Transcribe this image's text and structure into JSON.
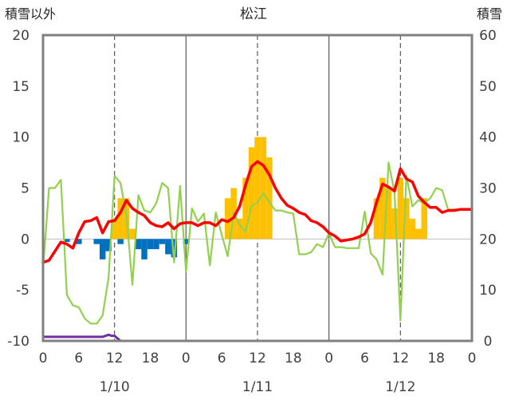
{
  "chart_data": {
    "type": "line",
    "title": "松江",
    "y_left_label": "積雪以外",
    "y_right_label": "積雪",
    "y_left_range": [
      -10,
      20
    ],
    "y_left_ticks": [
      "20",
      "15",
      "10",
      "5",
      "0",
      "-5",
      "-10"
    ],
    "y_right_range": [
      0,
      60
    ],
    "y_right_ticks": [
      "60",
      "50",
      "40",
      "30",
      "20",
      "10",
      "0"
    ],
    "x_range_hours": [
      0,
      72
    ],
    "x_tick_labels": [
      "0",
      "6",
      "12",
      "18",
      "0",
      "6",
      "12",
      "18",
      "0",
      "6",
      "12",
      "18",
      "0"
    ],
    "date_labels": [
      "1/10",
      "1/11",
      "1/12"
    ],
    "grid": "vertical dashed at 12h, solid at day boundaries",
    "colors": {
      "temperature": "#ff0000",
      "green_series": "#92d050",
      "snow_depth": "#7030a0",
      "snowfall_bar": "#ffc000",
      "precip_bar": "#0070c0",
      "frame": "#808080",
      "grid": "#595959"
    },
    "series": [
      {
        "role": "temperature",
        "axis": "left",
        "x": [
          0,
          1,
          2,
          3,
          4,
          5,
          6,
          7,
          8,
          9,
          10,
          11,
          12,
          13,
          14,
          15,
          16,
          17,
          18,
          19,
          20,
          21,
          22,
          23,
          24,
          25,
          26,
          27,
          28,
          29,
          30,
          31,
          32,
          33,
          34,
          35,
          36,
          37,
          38,
          39,
          40,
          41,
          42,
          43,
          44,
          45,
          46,
          47,
          48,
          49,
          50,
          51,
          52,
          53,
          54,
          55,
          56,
          57,
          58,
          59,
          60,
          61,
          62,
          63,
          64,
          65,
          66,
          67,
          68,
          69,
          70,
          71,
          72
        ],
        "y": [
          -2.3,
          -2.1,
          -1.2,
          -0.3,
          -0.5,
          -0.9,
          0.6,
          1.7,
          1.8,
          2.1,
          0.6,
          1.7,
          1.8,
          2.6,
          3.8,
          3.0,
          2.6,
          2.3,
          1.6,
          1.3,
          1.2,
          1.6,
          1.0,
          1.5,
          1.6,
          1.6,
          1.3,
          1.6,
          1.6,
          1.3,
          1.9,
          1.7,
          2.1,
          3.2,
          5.3,
          7.1,
          7.6,
          7.2,
          6.3,
          5.0,
          4.0,
          3.3,
          3.0,
          2.6,
          2.4,
          1.8,
          1.6,
          1.2,
          0.6,
          0.3,
          -0.2,
          -0.1,
          0.0,
          0.2,
          0.5,
          1.6,
          3.6,
          5.4,
          5.1,
          4.7,
          6.9,
          5.9,
          5.6,
          4.2,
          3.6,
          3.1,
          3.1,
          2.6,
          2.8,
          2.8,
          2.9,
          2.9,
          2.9
        ]
      },
      {
        "role": "green_series",
        "axis": "left",
        "x": [
          0,
          1,
          2,
          3,
          4,
          5,
          6,
          7,
          8,
          9,
          10,
          11,
          12,
          13,
          14,
          15,
          16,
          17,
          18,
          19,
          20,
          21,
          22,
          23,
          24,
          25,
          26,
          27,
          28,
          29,
          30,
          31,
          32,
          33,
          34,
          35,
          36,
          37,
          38,
          39,
          40,
          41,
          42,
          43,
          44,
          45,
          46,
          47,
          48,
          49,
          50,
          51,
          52,
          53,
          54,
          55,
          56,
          57,
          58,
          59,
          60,
          61,
          62,
          63,
          64,
          65,
          66,
          67,
          68,
          69,
          70,
          71,
          72
        ],
        "y": [
          -3.0,
          5.0,
          5.0,
          5.8,
          -5.5,
          -6.5,
          -6.7,
          -7.8,
          -8.3,
          -8.3,
          -7.5,
          -3.8,
          6.2,
          5.5,
          2.3,
          -4.5,
          4.3,
          2.8,
          2.6,
          3.5,
          5.5,
          5.0,
          -2.3,
          5.2,
          -3.2,
          3.0,
          1.7,
          2.5,
          -2.6,
          2.6,
          0.4,
          -1.7,
          2.6,
          1.4,
          0.7,
          3.2,
          3.6,
          4.5,
          3.6,
          2.8,
          2.8,
          2.6,
          2.5,
          -1.5,
          -1.5,
          -1.3,
          -0.5,
          -0.8,
          0.6,
          -0.8,
          -0.8,
          -0.9,
          -0.9,
          -0.9,
          2.7,
          -1.4,
          -2.0,
          -3.5,
          7.5,
          4.6,
          -8.0,
          6.2,
          3.2,
          3.8,
          3.5,
          4.0,
          5.0,
          4.8,
          2.9,
          2.9,
          2.9,
          2.9,
          2.9
        ]
      },
      {
        "role": "snow_depth",
        "axis": "right",
        "x": [
          0,
          10,
          11,
          11.5,
          12,
          13,
          14,
          72
        ],
        "y": [
          0.8,
          0.8,
          1.2,
          1.0,
          1.0,
          0.0,
          0.0,
          0.0
        ]
      },
      {
        "role": "snowfall_bar",
        "axis": "left",
        "x": [
          12,
          13,
          14,
          15,
          31,
          32,
          33,
          34,
          35,
          36,
          37,
          38,
          56,
          57,
          58,
          59,
          60,
          61,
          62,
          63,
          64
        ],
        "y": [
          2,
          4,
          4,
          1,
          4,
          5,
          2,
          6,
          9,
          10,
          10,
          8,
          4,
          6,
          5,
          3,
          6,
          4,
          2,
          1,
          4
        ]
      },
      {
        "role": "precip_bar",
        "axis": "left",
        "x": [
          4,
          6,
          9,
          10,
          11,
          13,
          16,
          17,
          18,
          19,
          20,
          21,
          22,
          24
        ],
        "y": [
          -0.3,
          -0.5,
          -0.5,
          -2.0,
          -1.2,
          -0.5,
          -1.0,
          -2.0,
          -1.0,
          -1.0,
          -0.5,
          -1.5,
          -1.8,
          -0.5
        ]
      }
    ]
  }
}
